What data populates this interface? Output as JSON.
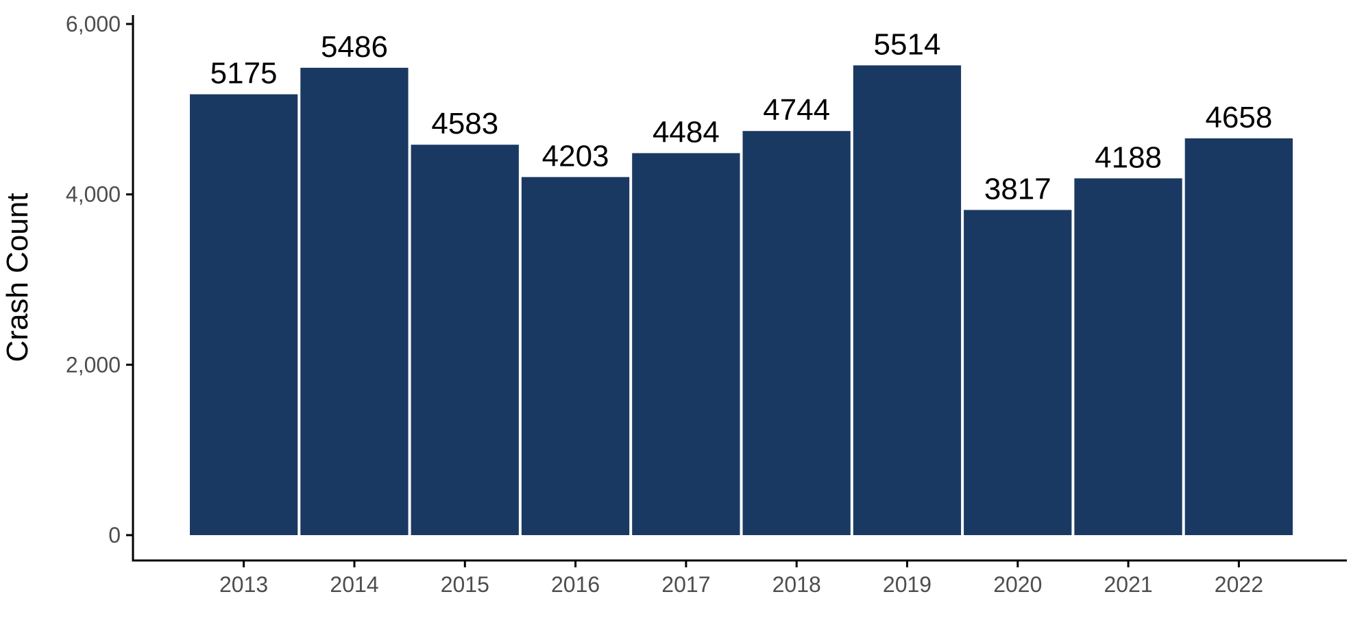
{
  "chart_data": {
    "type": "bar",
    "title": "",
    "xlabel": "",
    "ylabel": "Crash Count",
    "categories": [
      "2013",
      "2014",
      "2015",
      "2016",
      "2017",
      "2018",
      "2019",
      "2020",
      "2021",
      "2022"
    ],
    "values": [
      5175,
      5486,
      4583,
      4203,
      4484,
      4744,
      5514,
      3817,
      4188,
      4658
    ],
    "data_labels": [
      "5175",
      "5486",
      "4583",
      "4203",
      "4484",
      "4744",
      "5514",
      "3817",
      "4188",
      "4658"
    ],
    "ylim": [
      0,
      6000
    ],
    "yticks": [
      0,
      2000,
      4000,
      6000
    ],
    "ytick_labels": [
      "0",
      "2,000",
      "4,000",
      "6,000"
    ],
    "grid": false,
    "legend": "none",
    "colors": {
      "bar": "#1a3962",
      "axis": "#000000",
      "tick_text": "#4d4d4d",
      "label_text": "#000000"
    }
  }
}
